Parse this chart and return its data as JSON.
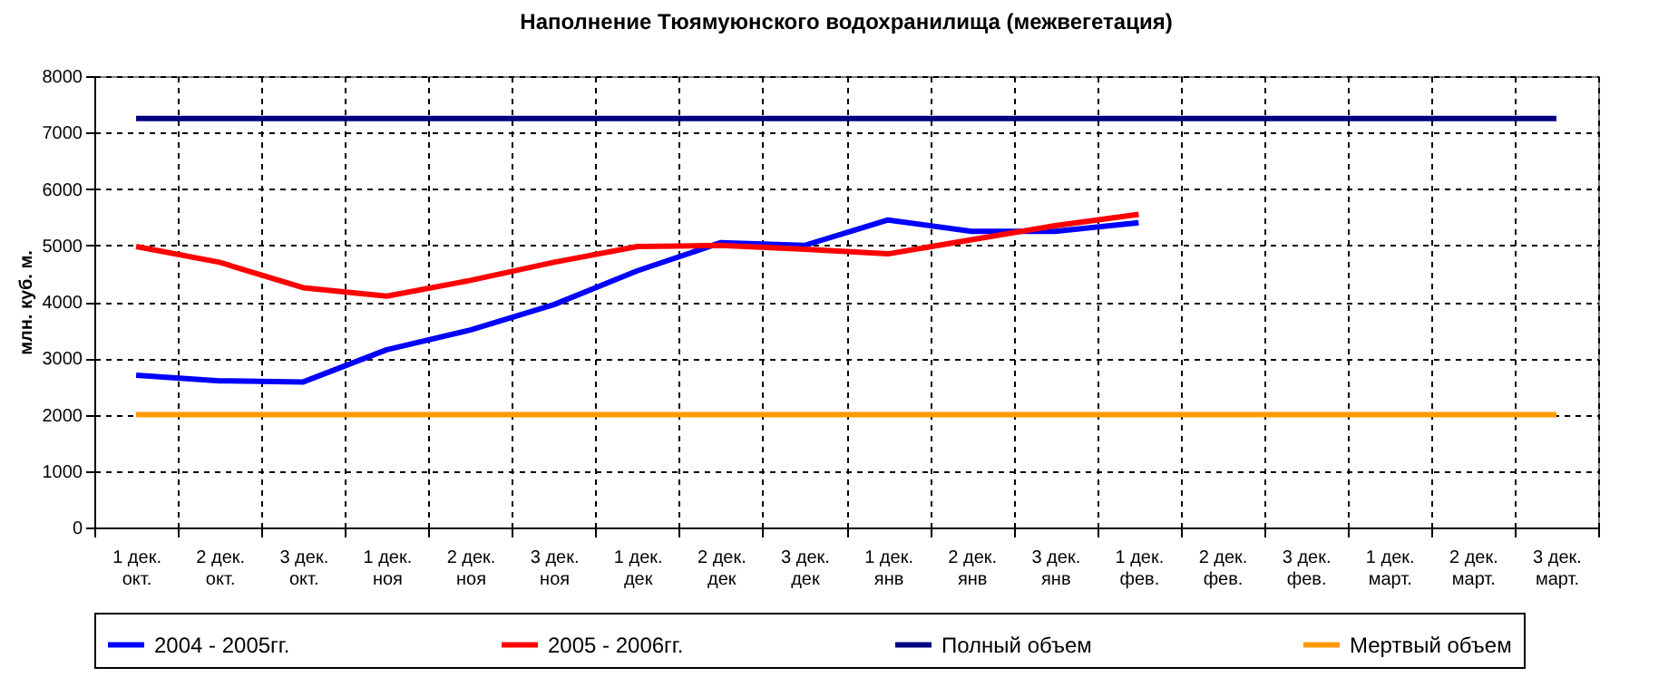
{
  "chart_data": {
    "type": "line",
    "title": "Наполнение Тюямуюнского водохранилища (межвегетация)",
    "ylabel": "млн. куб. м.",
    "categories": [
      "1 дек.\nокт.",
      "2 дек.\nокт.",
      "3 дек.\nокт.",
      "1 дек.\nноя",
      "2 дек.\nноя",
      "3 дек.\nноя",
      "1 дек.\nдек",
      "2 дек.\nдек",
      "3 дек.\nдек",
      "1 дек.\nянв",
      "2 дек.\nянв",
      "3 дек.\nянв",
      "1 дек.\nфев.",
      "2 дек.\nфев.",
      "3 дек.\nфев.",
      "1 дек.\nмарт.",
      "2 дек.\nмарт.",
      "3 дек.\nмарт."
    ],
    "series": [
      {
        "name": "2004 - 2005гг.",
        "color": "#0000ff",
        "values": [
          2700,
          2600,
          2580,
          3150,
          3500,
          3950,
          4550,
          5050,
          5000,
          5450,
          5250,
          5250,
          5400,
          null,
          null,
          null,
          null,
          null
        ]
      },
      {
        "name": "2005 - 2006гг.",
        "color": "#ff0000",
        "values": [
          4980,
          4700,
          4250,
          4100,
          4380,
          4700,
          4980,
          5000,
          4930,
          4850,
          5100,
          5350,
          5550,
          null,
          null,
          null,
          null,
          null
        ]
      },
      {
        "name": "Полный объем",
        "color": "#000080",
        "values": [
          7250,
          7250,
          7250,
          7250,
          7250,
          7250,
          7250,
          7250,
          7250,
          7250,
          7250,
          7250,
          7250,
          7250,
          7250,
          7250,
          7250,
          7250
        ]
      },
      {
        "name": "Мертвый объем",
        "color": "#ff9900",
        "values": [
          2000,
          2000,
          2000,
          2000,
          2000,
          2000,
          2000,
          2000,
          2000,
          2000,
          2000,
          2000,
          2000,
          2000,
          2000,
          2000,
          2000,
          2000
        ]
      }
    ],
    "ylim": [
      0,
      8000
    ],
    "yticks": [
      0,
      1000,
      2000,
      3000,
      4000,
      5000,
      6000,
      7000,
      8000
    ],
    "grid": true,
    "legend": "bottom",
    "marker": "none",
    "line_style": "solid"
  }
}
